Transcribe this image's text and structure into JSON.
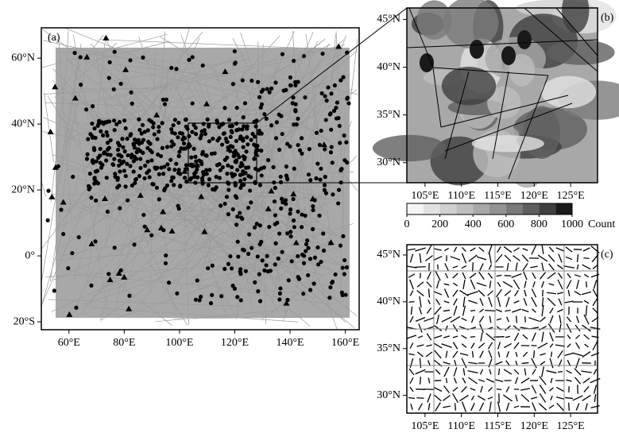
{
  "panels": [
    {
      "label": "(a)",
      "xlim": [
        50,
        165
      ],
      "ylim": [
        -22.4,
        69.2
      ],
      "xticks": [
        {
          "value": 60,
          "label": "60°E"
        },
        {
          "value": 80,
          "label": "80°E"
        },
        {
          "value": 100,
          "label": "100°E"
        },
        {
          "value": 120,
          "label": "120°E"
        },
        {
          "value": 140,
          "label": "140°E"
        },
        {
          "value": 160,
          "label": "160°E"
        }
      ],
      "yticks": [
        {
          "value": 60,
          "label": "60°N"
        },
        {
          "value": 40,
          "label": "40°N"
        },
        {
          "value": 20,
          "label": "20°N"
        },
        {
          "value": 0,
          "label": "0°"
        },
        {
          "value": -20,
          "label": "20°S"
        }
      ]
    },
    {
      "label": "(b)",
      "xlim": [
        102.5,
        128.7
      ],
      "ylim": [
        27.9,
        46.2
      ],
      "xticks": [
        {
          "value": 105,
          "label": "105°E"
        },
        {
          "value": 110,
          "label": "110°E"
        },
        {
          "value": 115,
          "label": "115°E"
        },
        {
          "value": 120,
          "label": "120°E"
        },
        {
          "value": 125,
          "label": "125°E"
        }
      ],
      "yticks": [
        {
          "value": 45,
          "label": "45°N"
        },
        {
          "value": 40,
          "label": "40°N"
        },
        {
          "value": 35,
          "label": "35°N"
        },
        {
          "value": 30,
          "label": "30°N"
        }
      ]
    },
    {
      "label": "(c)",
      "xlim": [
        102.5,
        128.7
      ],
      "ylim": [
        28.1,
        46.1
      ],
      "xticks": [
        {
          "value": 105,
          "label": "105°E"
        },
        {
          "value": 110,
          "label": "110°E"
        },
        {
          "value": 115,
          "label": "115°E"
        },
        {
          "value": 120,
          "label": "120°E"
        },
        {
          "value": 125,
          "label": "125°E"
        }
      ],
      "yticks": [
        {
          "value": 45,
          "label": "45°N"
        },
        {
          "value": 40,
          "label": "40°N"
        },
        {
          "value": 35,
          "label": "35°N"
        },
        {
          "value": 30,
          "label": "30°N"
        }
      ]
    }
  ],
  "colorbar": {
    "lim": [
      0,
      1000
    ],
    "ticks": [
      0,
      200,
      400,
      600,
      800,
      1000
    ],
    "label": "Count",
    "colors": [
      "#f4f4f4",
      "#e2e2e2",
      "#d0d0d0",
      "#bdbdbd",
      "#a8a8a8",
      "#929292",
      "#7a7a7a",
      "#5f5f5f",
      "#3f3f3f",
      "#1a1a1a"
    ]
  }
}
